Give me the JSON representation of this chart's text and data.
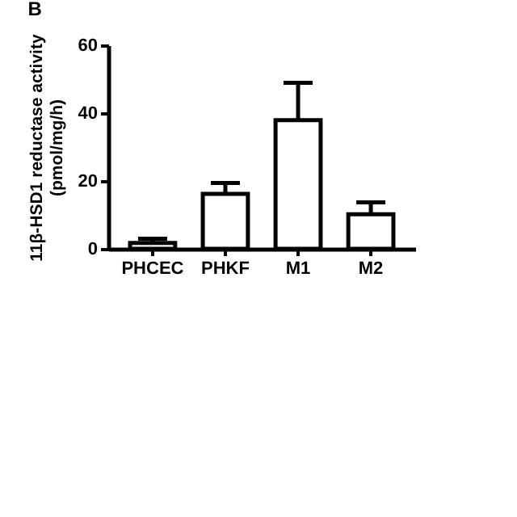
{
  "chart_data": {
    "type": "bar",
    "title": "B",
    "ylabel": "11β-HSD1 reductase activity\n(pmol/mg/h)",
    "categories": [
      "PHCEC",
      "PHKF",
      "M1",
      "M2"
    ],
    "values": [
      1.7,
      16.2,
      37.9,
      10.2
    ],
    "errors": [
      [
        1.7,
        3.0
      ],
      [
        16.2,
        19.4
      ],
      [
        37.9,
        48.9
      ],
      [
        10.2,
        13.7
      ]
    ],
    "color": "#ffffff",
    "ylim": [
      0,
      60
    ],
    "yticks": [
      0,
      20,
      40,
      60
    ],
    "grid": false
  }
}
